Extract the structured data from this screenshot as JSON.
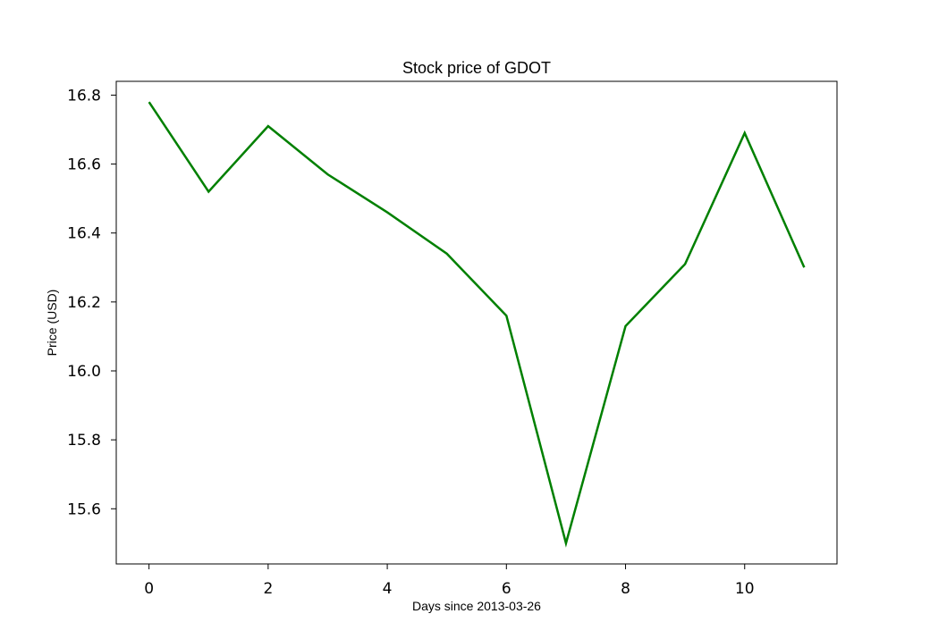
{
  "chart_data": {
    "type": "line",
    "title": "Stock price of GDOT",
    "xlabel": "Days since 2013-03-26",
    "ylabel": "Price (USD)",
    "xlim": [
      -0.55,
      11.55
    ],
    "ylim": [
      15.44,
      16.84
    ],
    "x_ticks": [
      0,
      2,
      4,
      6,
      8,
      10
    ],
    "x_tick_labels": [
      "0",
      "2",
      "4",
      "6",
      "8",
      "10"
    ],
    "y_ticks": [
      15.6,
      15.8,
      16.0,
      16.2,
      16.4,
      16.6,
      16.8
    ],
    "y_tick_labels": [
      "15.6",
      "15.8",
      "16.0",
      "16.2",
      "16.4",
      "16.6",
      "16.8"
    ],
    "grid": false,
    "series": [
      {
        "color": "#008000",
        "x": [
          0,
          1,
          2,
          3,
          4,
          5,
          6,
          7,
          8,
          9,
          10,
          11
        ],
        "y": [
          16.78,
          16.52,
          16.71,
          16.57,
          16.46,
          16.34,
          16.16,
          15.5,
          16.13,
          16.31,
          16.69,
          16.3
        ]
      }
    ]
  }
}
